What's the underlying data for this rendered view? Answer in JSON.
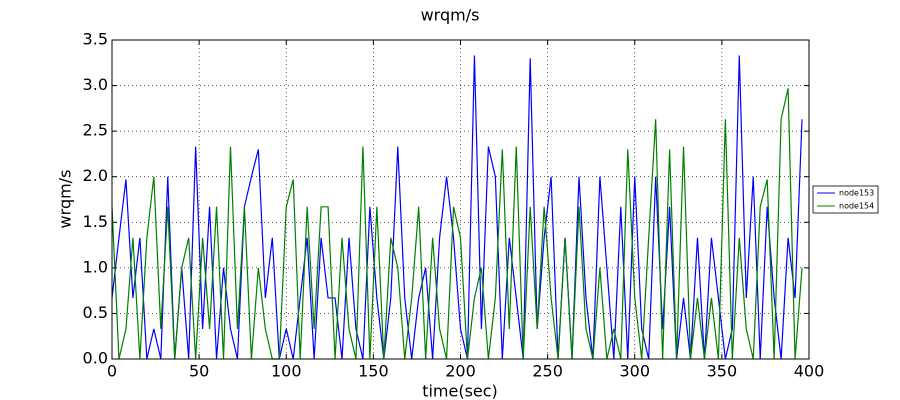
{
  "chart_data": {
    "type": "line",
    "title": "wrqm/s",
    "xlabel": "time(sec)",
    "ylabel": "wrqm/s",
    "x": [
      0,
      4,
      8,
      12,
      16,
      20,
      24,
      28,
      32,
      36,
      40,
      44,
      48,
      52,
      56,
      60,
      64,
      68,
      72,
      76,
      80,
      84,
      88,
      92,
      96,
      100,
      104,
      108,
      112,
      116,
      120,
      124,
      128,
      132,
      136,
      140,
      144,
      148,
      152,
      156,
      160,
      164,
      168,
      172,
      176,
      180,
      184,
      188,
      192,
      196,
      200,
      204,
      208,
      212,
      216,
      220,
      224,
      228,
      232,
      236,
      240,
      244,
      248,
      252,
      256,
      260,
      264,
      268,
      272,
      276,
      280,
      284,
      288,
      292,
      296,
      300,
      304,
      308,
      312,
      316,
      320,
      324,
      328,
      332,
      336,
      340,
      344,
      348,
      352,
      356,
      360,
      364,
      368,
      372,
      376,
      380,
      384,
      388,
      392,
      396
    ],
    "series": [
      {
        "name": "node153",
        "color": "#0000ff",
        "values": [
          0.67,
          1.33,
          1.97,
          0.67,
          1.33,
          0,
          0.33,
          0,
          2.0,
          0,
          1.0,
          0,
          2.33,
          0.33,
          1.67,
          0,
          1.0,
          0.33,
          0,
          1.67,
          2.0,
          2.3,
          0.67,
          1.33,
          0,
          0.33,
          0,
          0.67,
          1.33,
          0,
          1.33,
          0.67,
          0.67,
          0,
          1.33,
          0.33,
          0,
          1.67,
          0.67,
          0,
          0.67,
          2.33,
          0.67,
          0,
          0.67,
          1.0,
          0,
          1.33,
          2.0,
          1.33,
          0.33,
          0,
          3.33,
          0.33,
          2.33,
          2.0,
          0,
          1.33,
          0.67,
          0,
          3.3,
          0.33,
          1.33,
          2.0,
          0,
          1.33,
          0,
          2.0,
          0.67,
          0,
          2.0,
          1.0,
          0,
          1.67,
          0,
          2.0,
          0.33,
          0,
          2.0,
          0.33,
          1.67,
          0,
          0.67,
          0,
          1.33,
          0,
          1.33,
          0.67,
          0,
          0.33,
          3.33,
          0.67,
          2.0,
          0,
          1.67,
          0.67,
          0,
          1.33,
          0.67,
          2.63
        ]
      },
      {
        "name": "node154",
        "color": "#008000",
        "values": [
          1.67,
          0,
          0.33,
          1.33,
          0,
          1.33,
          2.0,
          0.33,
          1.67,
          0,
          1.0,
          1.33,
          0,
          1.33,
          0.33,
          1.67,
          0,
          2.33,
          0.33,
          1.67,
          0,
          1.0,
          0.33,
          0,
          0,
          1.67,
          1.97,
          0,
          1.67,
          0.33,
          1.67,
          1.67,
          0,
          1.33,
          0.33,
          0,
          2.33,
          0,
          1.67,
          0,
          1.33,
          1.0,
          0,
          0.67,
          1.67,
          0,
          1.33,
          0.33,
          0,
          1.67,
          1.33,
          0,
          0.67,
          1.0,
          0,
          0.67,
          2.3,
          0.33,
          2.33,
          0,
          1.67,
          0.33,
          1.67,
          0.67,
          0,
          1.33,
          0,
          1.67,
          0.33,
          0,
          1.0,
          0,
          0.33,
          0,
          2.3,
          0.67,
          0,
          1.33,
          2.63,
          0,
          2.3,
          0,
          2.33,
          0,
          0.67,
          0,
          0.67,
          0,
          2.63,
          0,
          1.33,
          0.33,
          0,
          1.67,
          1.97,
          0,
          2.63,
          2.97,
          0,
          1.0
        ]
      }
    ],
    "xlim": [
      0,
      400
    ],
    "xticks": [
      0,
      50,
      100,
      150,
      200,
      250,
      300,
      350,
      400
    ],
    "ylim": [
      0,
      3.5
    ],
    "yticks": [
      {
        "value": 0,
        "label": "0.0"
      },
      {
        "value": 0.5,
        "label": "0.5"
      },
      {
        "value": 1,
        "label": "1.0"
      },
      {
        "value": 1.5,
        "label": "1.5"
      },
      {
        "value": 2,
        "label": "2.0"
      },
      {
        "value": 2.5,
        "label": "2.5"
      },
      {
        "value": 3,
        "label": "3.0"
      },
      {
        "value": 3.5,
        "label": "3.5"
      }
    ],
    "grid": true,
    "legend": "right"
  }
}
